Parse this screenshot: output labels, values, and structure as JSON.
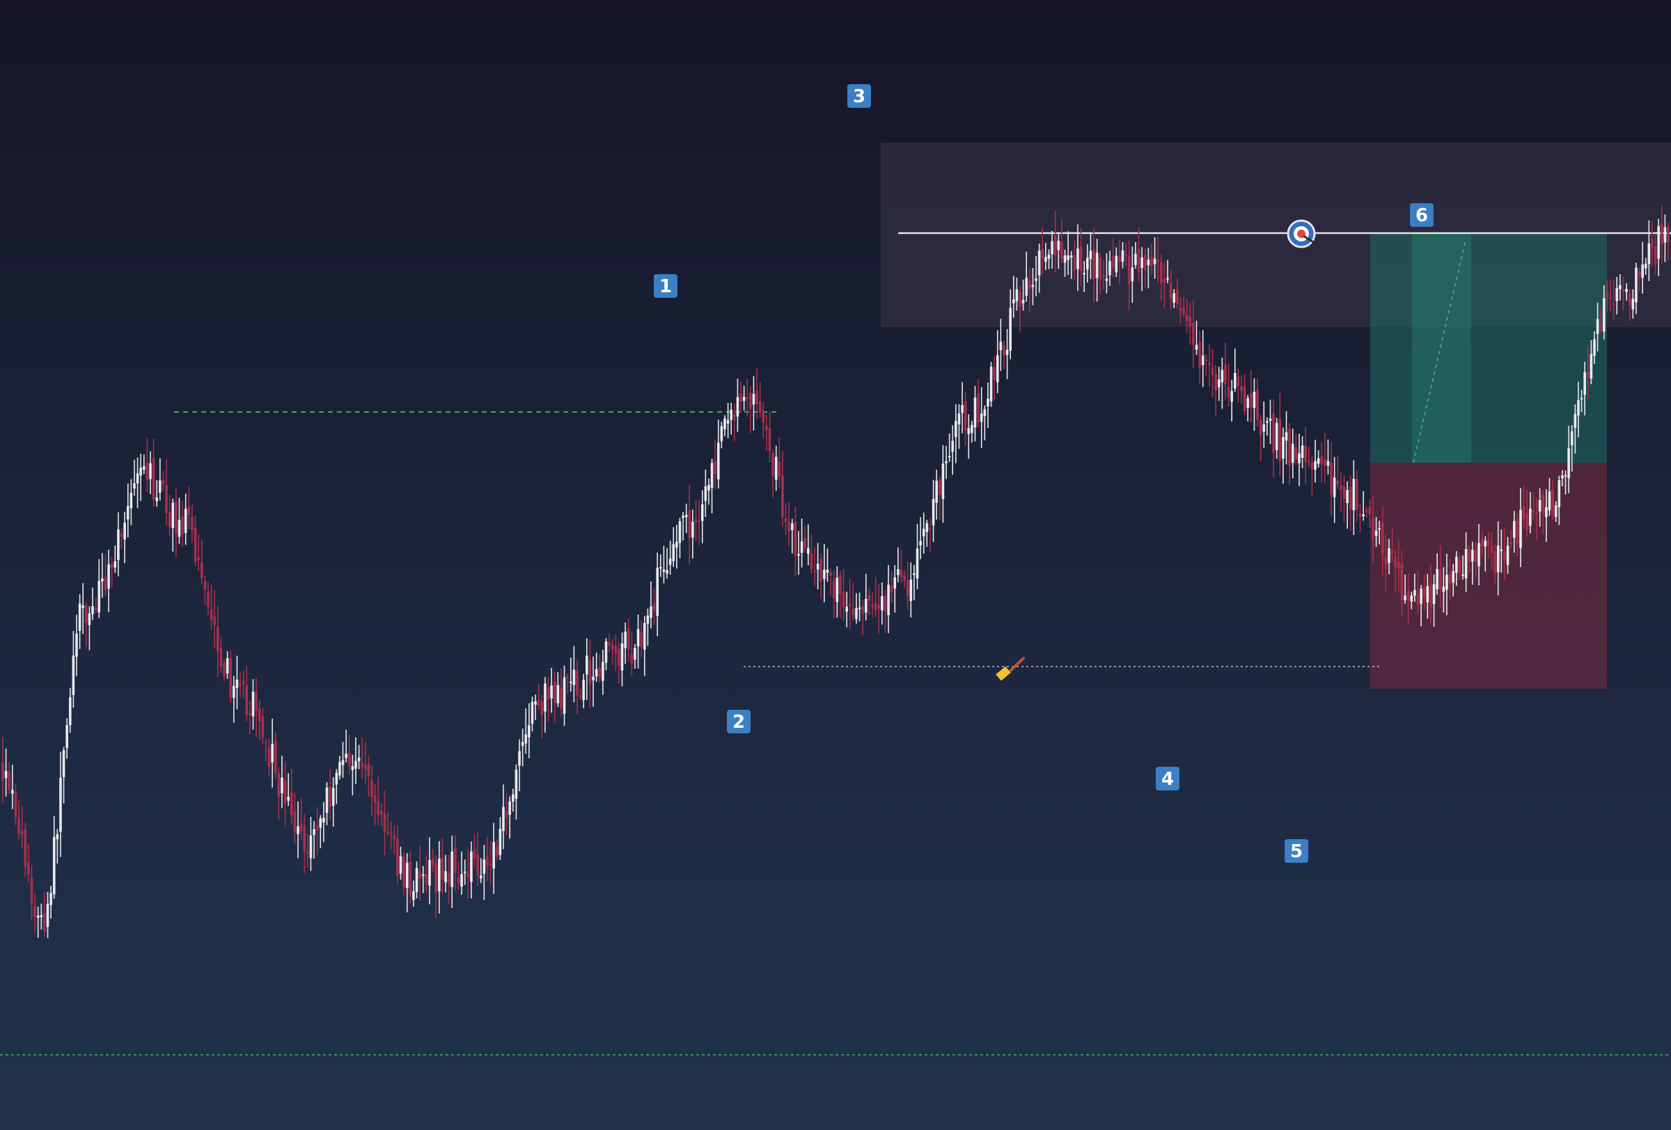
{
  "chart_data": {
    "type": "candlestick",
    "title": "",
    "xlabel": "",
    "ylabel": "",
    "axes_visible": false,
    "grid": false,
    "colors": {
      "background_top": "#161528",
      "background_bottom": "#22324b",
      "bullish": "#e9e9ee",
      "bearish": "#a8304c",
      "target_line": "#e6e6ea",
      "green_dashed": "#3fae5a",
      "gray_dotted": "#8f96a3",
      "label_bg": "#3b7fc4",
      "label_text": "#ffffff",
      "profit_zone": "#1f6b63",
      "loss_zone": "#7a2a3c",
      "supply_zone": "#3a3548"
    },
    "wave_labels": [
      "1",
      "2",
      "3",
      "4",
      "5",
      "6"
    ],
    "annotations": [
      {
        "type": "target-icon",
        "name": "target-marker"
      },
      {
        "type": "brush-icon",
        "name": "brush-marker"
      },
      {
        "type": "long-position-tool",
        "name": "risk-reward-box"
      },
      {
        "type": "supply-zone",
        "name": "resistance-zone"
      }
    ],
    "ylim": [
      0,
      1000
    ],
    "x_count": 520,
    "price_path_keypoints": [
      [
        0,
        330
      ],
      [
        12,
        180
      ],
      [
        25,
        470
      ],
      [
        45,
        600
      ],
      [
        55,
        560
      ],
      [
        75,
        390
      ],
      [
        95,
        260
      ],
      [
        108,
        340
      ],
      [
        128,
        220
      ],
      [
        150,
        240
      ],
      [
        168,
        390
      ],
      [
        195,
        440
      ],
      [
        212,
        550
      ],
      [
        232,
        680
      ],
      [
        250,
        530
      ],
      [
        268,
        470
      ],
      [
        280,
        500
      ],
      [
        300,
        655
      ],
      [
        325,
        810
      ],
      [
        355,
        800
      ],
      [
        380,
        690
      ],
      [
        405,
        620
      ],
      [
        420,
        585
      ],
      [
        440,
        490
      ],
      [
        462,
        525
      ],
      [
        482,
        575
      ],
      [
        500,
        760
      ],
      [
        520,
        830
      ]
    ]
  }
}
